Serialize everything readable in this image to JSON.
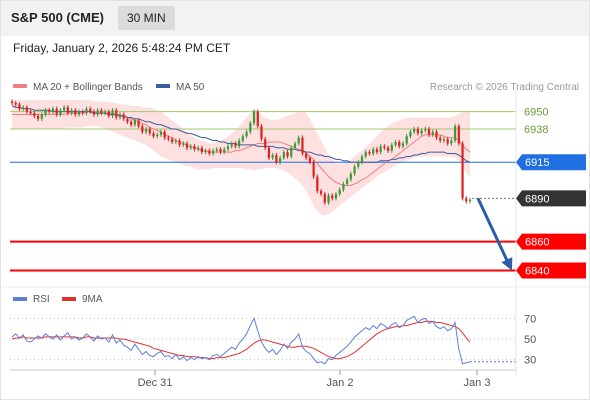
{
  "header": {
    "title": "S&P 500 (CME)",
    "timeframe": "30 MIN"
  },
  "datetime": "Friday, January 2, 2026 5:48:24 PM CET",
  "colors": {
    "up": "#3a9a3a",
    "down": "#e02020",
    "ma20": "#f08080",
    "band_fill": "#fde0e0",
    "ma50": "#3b5c9e",
    "support": "#ff0000",
    "pivot": "#1f6fe0",
    "current": "#333333",
    "resistance": "#a3c96b",
    "rsi": "#5b7fd9",
    "rsi_ma": "#e53030",
    "arrow": "#2a5ca8"
  },
  "chart_data": [
    {
      "type": "line",
      "name": "price",
      "legend": [
        "MA 20 + Bollinger Bands",
        "MA 50"
      ],
      "legend_placement": "top-left",
      "attribution": "Research © 2026 Trading Central",
      "x_ticks": [
        "Dec 31",
        "Jan 2",
        "Jan 3"
      ],
      "ylim": [
        6830,
        6965
      ],
      "levels": [
        {
          "value": 6950,
          "label": "6950",
          "kind": "resistance"
        },
        {
          "value": 6938,
          "label": "6938",
          "kind": "resistance"
        },
        {
          "value": 6915,
          "label": "6915",
          "kind": "pivot"
        },
        {
          "value": 6890,
          "label": "6890",
          "kind": "current"
        },
        {
          "value": 6860,
          "label": "6860",
          "kind": "support"
        },
        {
          "value": 6840,
          "label": "6840",
          "kind": "support"
        }
      ],
      "forecast_arrow": {
        "from": 6890,
        "to": 6840
      },
      "close": [
        6956,
        6955,
        6952,
        6953,
        6950,
        6949,
        6947,
        6945,
        6948,
        6951,
        6950,
        6952,
        6948,
        6951,
        6953,
        6949,
        6951,
        6948,
        6950,
        6949,
        6952,
        6950,
        6948,
        6951,
        6949,
        6950,
        6947,
        6951,
        6946,
        6948,
        6945,
        6943,
        6941,
        6944,
        6940,
        6936,
        6938,
        6935,
        6933,
        6934,
        6936,
        6932,
        6931,
        6929,
        6930,
        6927,
        6928,
        6925,
        6926,
        6924,
        6925,
        6922,
        6923,
        6921,
        6923,
        6924,
        6922,
        6924,
        6926,
        6928,
        6926,
        6930,
        6933,
        6936,
        6942,
        6950,
        6940,
        6931,
        6925,
        6918,
        6920,
        6915,
        6918,
        6922,
        6919,
        6925,
        6928,
        6932,
        6921,
        6918,
        6915,
        6905,
        6895,
        6893,
        6887,
        6892,
        6890,
        6893,
        6896,
        6900,
        6903,
        6907,
        6912,
        6915,
        6919,
        6922,
        6921,
        6924,
        6922,
        6926,
        6925,
        6923,
        6927,
        6929,
        6926,
        6928,
        6933,
        6936,
        6938,
        6935,
        6937,
        6938,
        6934,
        6936,
        6932,
        6930,
        6931,
        6928,
        6930,
        6940,
        6928,
        6890,
        6888,
        6889
      ],
      "ma20": [
        6948,
        6948,
        6948,
        6948,
        6948,
        6948,
        6948,
        6948,
        6948,
        6948,
        6948,
        6948,
        6948,
        6948,
        6948,
        6949,
        6949,
        6949,
        6949,
        6949,
        6950,
        6950,
        6950,
        6949,
        6949,
        6949,
        6949,
        6949,
        6948,
        6948,
        6947,
        6946,
        6945,
        6944,
        6943,
        6942,
        6941,
        6939,
        6938,
        6937,
        6936,
        6934,
        6933,
        6932,
        6930,
        6929,
        6928,
        6927,
        6926,
        6925,
        6924,
        6923,
        6923,
        6922,
        6922,
        6922,
        6922,
        6922,
        6922,
        6922,
        6923,
        6923,
        6924,
        6925,
        6926,
        6927,
        6928,
        6928,
        6928,
        6929,
        6929,
        6929,
        6929,
        6928,
        6927,
        6926,
        6925,
        6924,
        6923,
        6921,
        6919,
        6917,
        6914,
        6911,
        6908,
        6905,
        6903,
        6901,
        6900,
        6899,
        6899,
        6899,
        6900,
        6901,
        6903,
        6904,
        6906,
        6908,
        6910,
        6912,
        6914,
        6916,
        6917,
        6919,
        6921,
        6923,
        6925,
        6927,
        6929,
        6931,
        6933,
        6934,
        6934,
        6934,
        6934,
        6934,
        6933,
        6932,
        6932,
        6932,
        6930,
        6927,
        6924,
        6922
      ],
      "bb_upper": [
        6958,
        6958,
        6958,
        6958,
        6958,
        6958,
        6958,
        6958,
        6958,
        6958,
        6958,
        6958,
        6958,
        6958,
        6958,
        6958,
        6958,
        6958,
        6958,
        6958,
        6958,
        6958,
        6957,
        6957,
        6957,
        6957,
        6957,
        6956,
        6956,
        6955,
        6955,
        6955,
        6954,
        6954,
        6954,
        6953,
        6953,
        6953,
        6952,
        6951,
        6950,
        6948,
        6946,
        6944,
        6942,
        6940,
        6938,
        6936,
        6934,
        6932,
        6931,
        6930,
        6929,
        6928,
        6928,
        6929,
        6930,
        6931,
        6933,
        6935,
        6937,
        6940,
        6943,
        6946,
        6949,
        6952,
        6950,
        6948,
        6946,
        6945,
        6944,
        6944,
        6945,
        6946,
        6947,
        6948,
        6949,
        6950,
        6950,
        6949,
        6945,
        6940,
        6935,
        6930,
        6925,
        6920,
        6917,
        6915,
        6914,
        6914,
        6915,
        6917,
        6919,
        6921,
        6923,
        6925,
        6928,
        6930,
        6933,
        6936,
        6938,
        6940,
        6942,
        6943,
        6944,
        6945,
        6946,
        6946,
        6946,
        6946,
        6946,
        6946,
        6946,
        6946,
        6946,
        6946,
        6946,
        6946,
        6946,
        6947,
        6948,
        6950,
        6950,
        6950
      ],
      "bb_lower": [
        6938,
        6938,
        6938,
        6938,
        6938,
        6938,
        6938,
        6938,
        6938,
        6938,
        6938,
        6938,
        6938,
        6938,
        6938,
        6939,
        6939,
        6939,
        6939,
        6939,
        6940,
        6940,
        6940,
        6940,
        6939,
        6938,
        6937,
        6936,
        6935,
        6934,
        6933,
        6932,
        6931,
        6930,
        6929,
        6928,
        6927,
        6925,
        6923,
        6921,
        6919,
        6918,
        6917,
        6916,
        6915,
        6914,
        6913,
        6912,
        6912,
        6911,
        6910,
        6910,
        6910,
        6910,
        6911,
        6911,
        6911,
        6911,
        6911,
        6911,
        6911,
        6911,
        6911,
        6910,
        6910,
        6909,
        6910,
        6910,
        6911,
        6911,
        6911,
        6911,
        6910,
        6909,
        6908,
        6906,
        6904,
        6902,
        6899,
        6895,
        6890,
        6885,
        6881,
        6879,
        6878,
        6879,
        6881,
        6883,
        6885,
        6887,
        6889,
        6891,
        6893,
        6895,
        6897,
        6899,
        6901,
        6903,
        6905,
        6907,
        6908,
        6910,
        6911,
        6913,
        6914,
        6915,
        6916,
        6917,
        6918,
        6919,
        6919,
        6919,
        6919,
        6919,
        6919,
        6919,
        6919,
        6919,
        6919,
        6918,
        6916,
        6912,
        6908,
        6905
      ],
      "ma50": [
        6954,
        6953,
        6953,
        6952,
        6952,
        6952,
        6951,
        6951,
        6951,
        6951,
        6951,
        6950,
        6950,
        6950,
        6950,
        6950,
        6950,
        6950,
        6950,
        6950,
        6950,
        6950,
        6949,
        6949,
        6949,
        6949,
        6948,
        6948,
        6948,
        6947,
        6947,
        6946,
        6946,
        6945,
        6945,
        6944,
        6943,
        6943,
        6942,
        6941,
        6941,
        6940,
        6939,
        6938,
        6938,
        6937,
        6936,
        6935,
        6935,
        6934,
        6933,
        6932,
        6932,
        6931,
        6930,
        6930,
        6929,
        6929,
        6928,
        6928,
        6928,
        6927,
        6927,
        6927,
        6927,
        6927,
        6926,
        6926,
        6926,
        6926,
        6926,
        6925,
        6925,
        6925,
        6924,
        6924,
        6924,
        6923,
        6923,
        6922,
        6922,
        6921,
        6920,
        6920,
        6919,
        6919,
        6918,
        6917,
        6917,
        6916,
        6916,
        6915,
        6915,
        6915,
        6915,
        6915,
        6915,
        6915,
        6915,
        6916,
        6916,
        6916,
        6917,
        6917,
        6918,
        6918,
        6919,
        6919,
        6920,
        6920,
        6921,
        6921,
        6922,
        6922,
        6922,
        6922,
        6922,
        6921,
        6921,
        6921,
        6920,
        6918,
        6916,
        6915
      ]
    },
    {
      "type": "line",
      "name": "rsi",
      "legend": [
        "RSI",
        "9MA"
      ],
      "legend_placement": "top-left",
      "ylim": [
        20,
        80
      ],
      "y_ticks": [
        70,
        50,
        30
      ],
      "rsi": [
        52,
        55,
        51,
        54,
        48,
        47,
        50,
        53,
        51,
        55,
        52,
        50,
        54,
        49,
        53,
        56,
        50,
        52,
        49,
        51,
        55,
        52,
        48,
        53,
        50,
        51,
        47,
        54,
        46,
        49,
        44,
        42,
        39,
        45,
        40,
        35,
        38,
        34,
        33,
        36,
        38,
        33,
        34,
        31,
        35,
        30,
        33,
        29,
        32,
        30,
        33,
        31,
        32,
        30,
        34,
        35,
        33,
        36,
        39,
        42,
        40,
        46,
        50,
        55,
        63,
        70,
        58,
        47,
        41,
        37,
        40,
        35,
        39,
        45,
        41,
        47,
        50,
        55,
        42,
        38,
        36,
        31,
        27,
        28,
        26,
        31,
        30,
        34,
        37,
        40,
        43,
        47,
        52,
        55,
        58,
        61,
        59,
        63,
        60,
        65,
        63,
        60,
        64,
        66,
        61,
        63,
        68,
        70,
        72,
        66,
        69,
        70,
        65,
        67,
        62,
        60,
        62,
        58,
        60,
        66,
        40,
        26,
        27,
        28
      ],
      "rsi_ma": [
        50,
        51,
        51,
        52,
        51,
        51,
        51,
        51,
        51,
        52,
        52,
        52,
        52,
        52,
        52,
        52,
        52,
        52,
        51,
        51,
        52,
        52,
        51,
        51,
        51,
        51,
        51,
        51,
        51,
        50,
        50,
        49,
        48,
        47,
        46,
        45,
        44,
        43,
        41,
        40,
        39,
        38,
        37,
        36,
        35,
        34,
        34,
        33,
        33,
        33,
        32,
        32,
        32,
        31,
        31,
        32,
        32,
        32,
        33,
        34,
        35,
        36,
        38,
        40,
        43,
        46,
        48,
        49,
        49,
        48,
        47,
        46,
        45,
        44,
        43,
        42,
        42,
        43,
        43,
        43,
        42,
        41,
        39,
        37,
        35,
        33,
        32,
        31,
        31,
        32,
        33,
        35,
        37,
        40,
        43,
        46,
        49,
        52,
        55,
        57,
        59,
        60,
        61,
        62,
        62,
        63,
        63,
        64,
        65,
        66,
        66,
        67,
        67,
        67,
        66,
        66,
        65,
        64,
        63,
        62,
        60,
        56,
        51,
        47
      ]
    }
  ]
}
